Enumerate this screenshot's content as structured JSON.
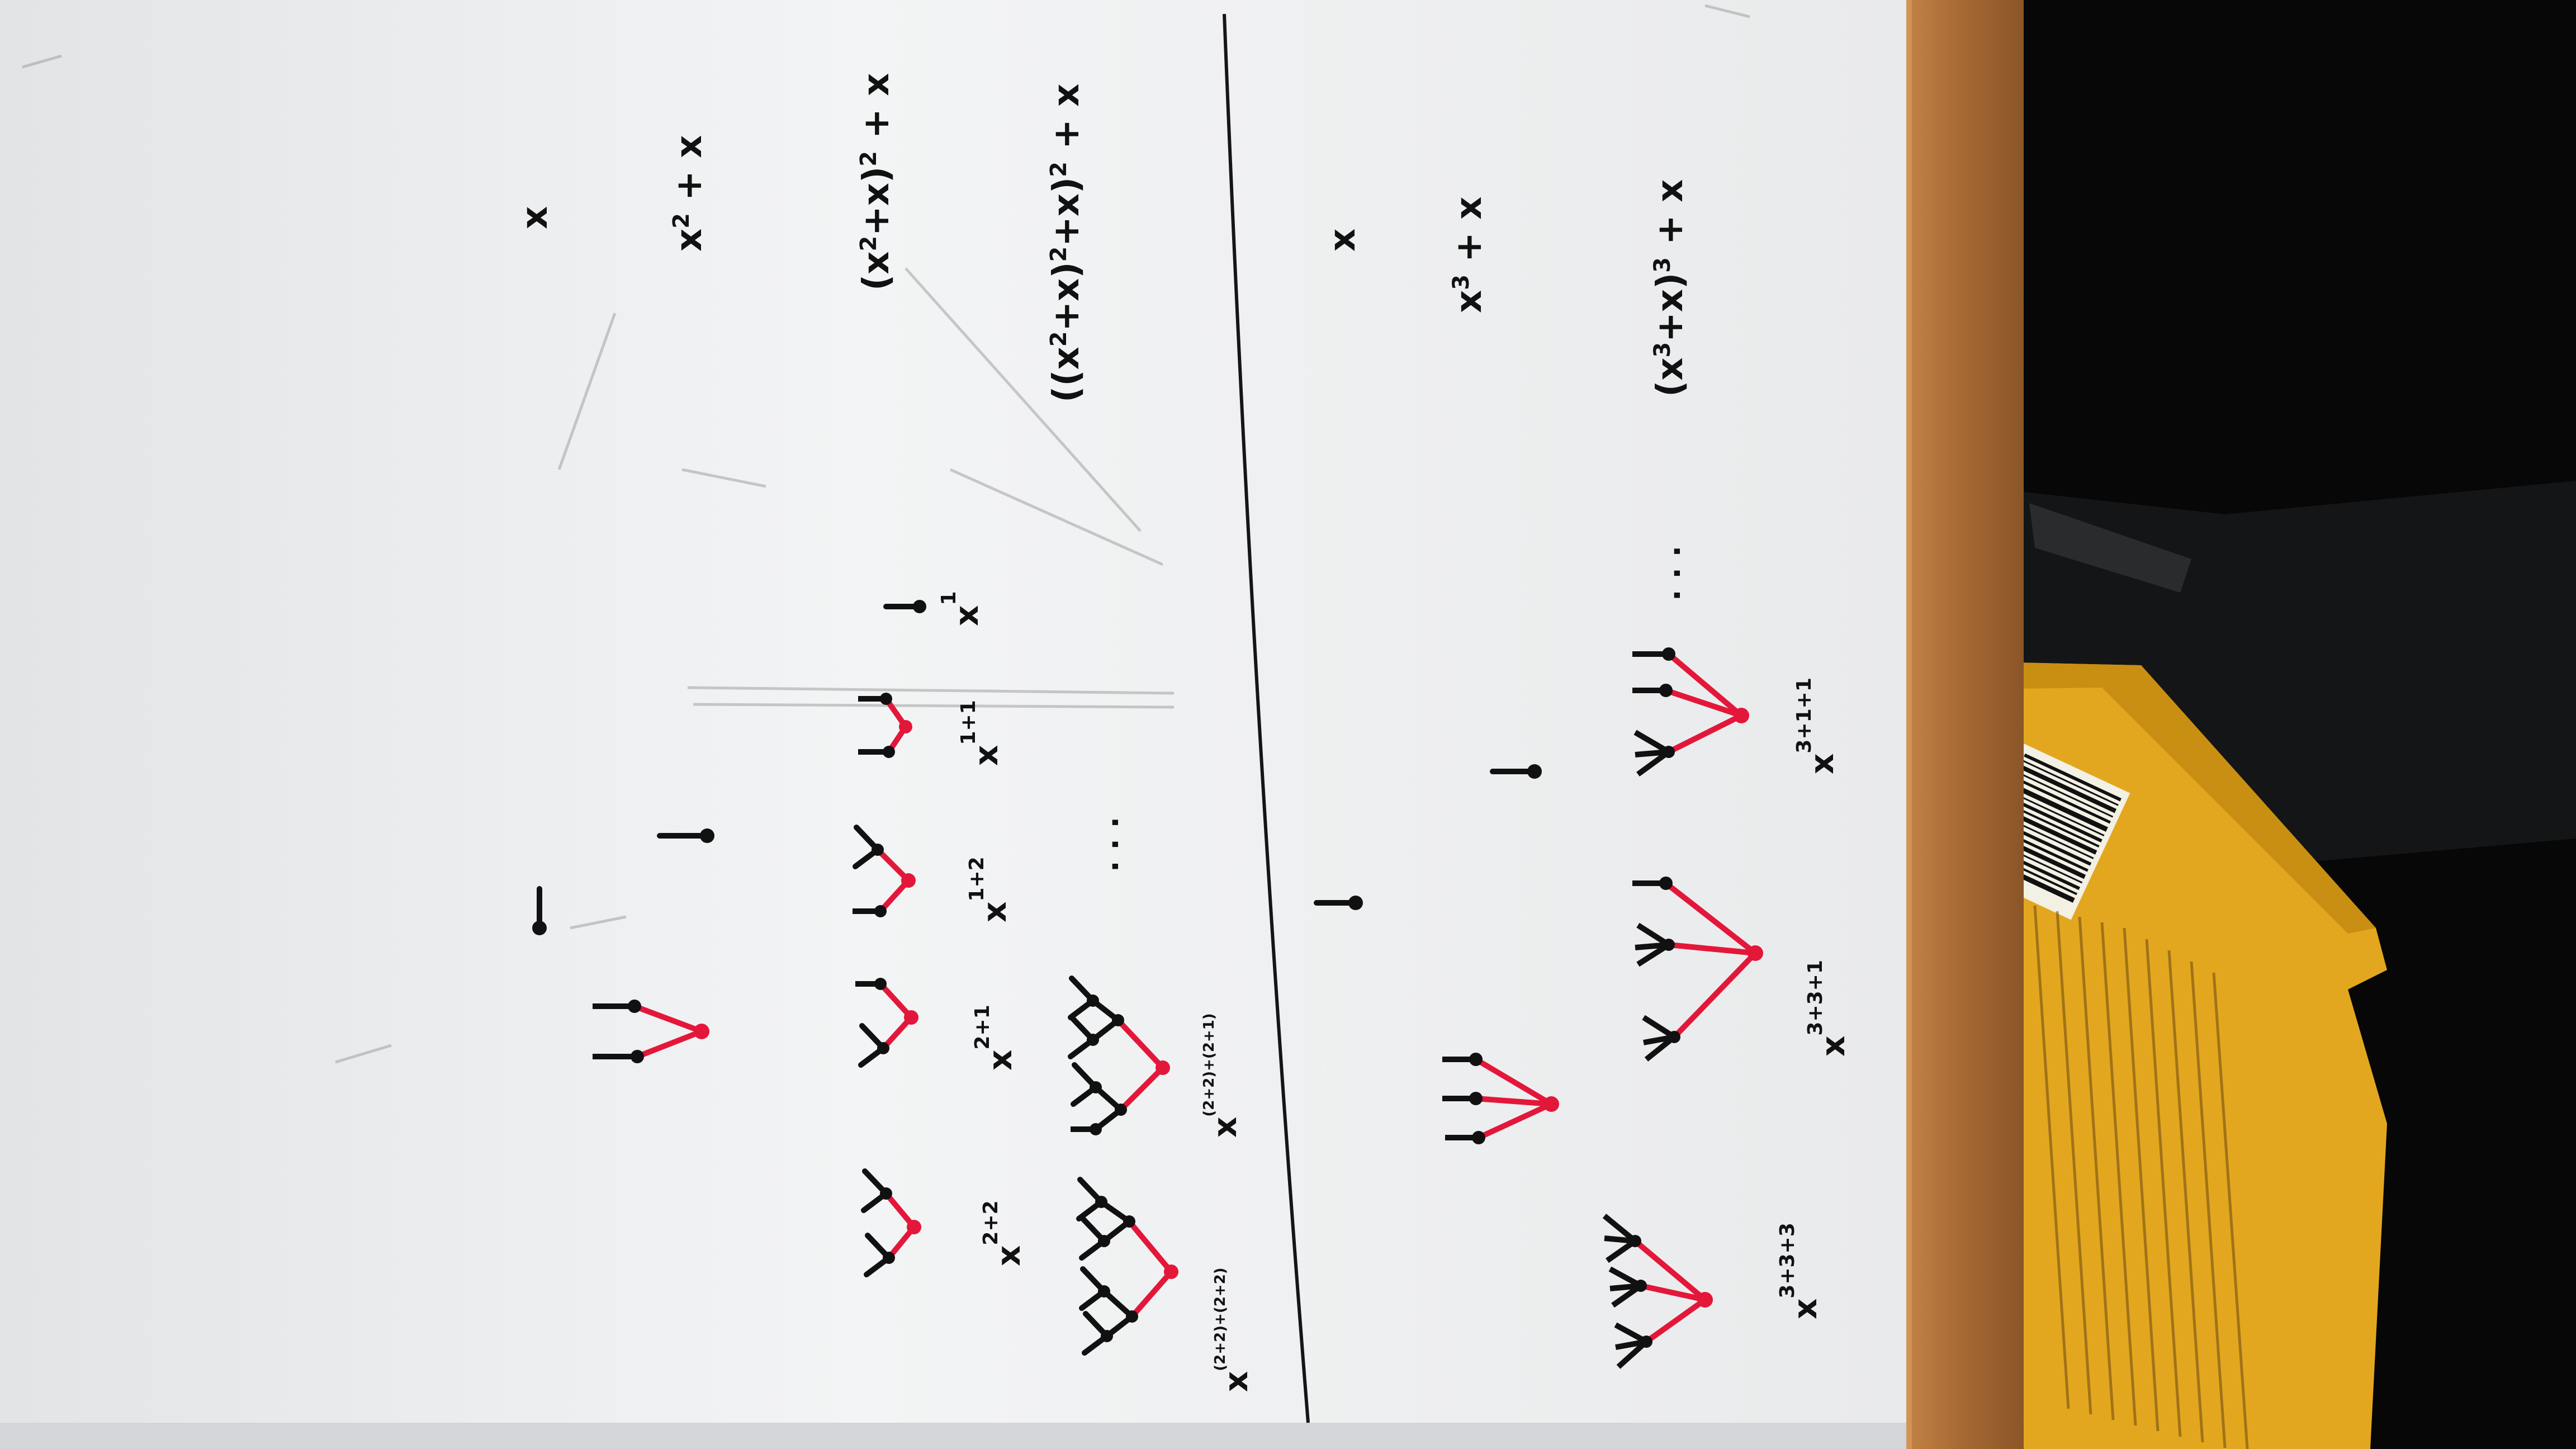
{
  "top_section": {
    "rhs": [
      {
        "base": "x",
        "rest": ""
      },
      {
        "base": "x",
        "sup": "2",
        "rest": " + x"
      },
      {
        "pre": "(x",
        "sup": "2",
        "mid": "+x)",
        "sup2": "2",
        "rest": " + x"
      },
      {
        "pre": "((x",
        "sup": "2",
        "mid": "+x)",
        "sup2": "2",
        "mid2": "+x)",
        "sup3": "2",
        "rest": " + x"
      }
    ],
    "exponents": [
      "2+2",
      "2+1",
      "1+2",
      "1+1",
      "1",
      "(2+2)+(2+2)",
      "(2+2)+(2+1)"
    ],
    "ellipsis": ". . ."
  },
  "bottom_section": {
    "rhs": [
      {
        "base": "x",
        "rest": ""
      },
      {
        "base": "x",
        "sup": "3",
        "rest": " + x"
      },
      {
        "pre": "(x",
        "sup": "3",
        "mid": "+x)",
        "sup2": "3",
        "rest": " + x"
      }
    ],
    "exponents": [
      "3+3+3",
      "3+3+1",
      "3+1+1"
    ],
    "ellipsis": ". . ."
  },
  "book": {
    "cover_color": "#e3a71f"
  },
  "colors": {
    "ink": "#111111",
    "red": "#e3173a",
    "board": "#f2f3f4",
    "frame": "#b4773e"
  }
}
